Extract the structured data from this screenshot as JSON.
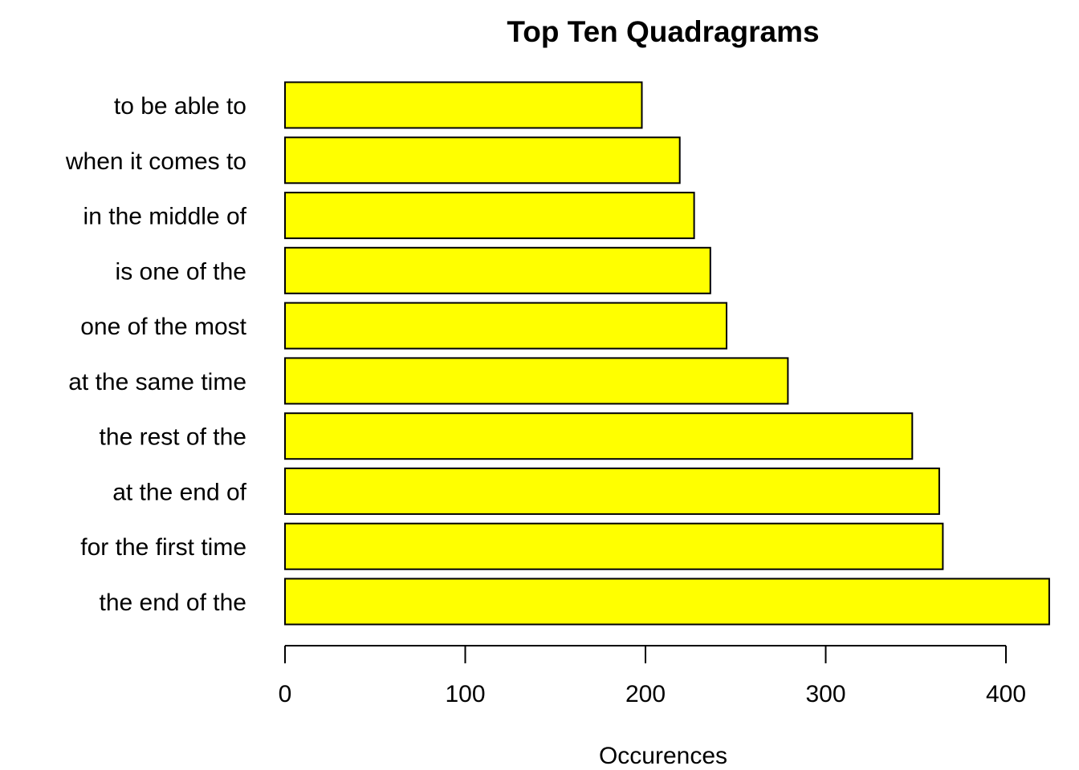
{
  "chart_data": {
    "type": "bar",
    "orientation": "horizontal",
    "title": "Top Ten Quadragrams",
    "xlabel": "Occurences",
    "ylabel": "",
    "categories": [
      "the end of the",
      "for the first time",
      "at the end of",
      "the rest of the",
      "at the same time",
      "one of the most",
      "is one of the",
      "in the middle of",
      "when it comes to",
      "to be able to"
    ],
    "values": [
      424,
      365,
      363,
      348,
      279,
      245,
      236,
      227,
      219,
      198
    ],
    "xlim": [
      0,
      424
    ],
    "xticks": [
      0,
      100,
      200,
      300,
      400
    ],
    "grid": false,
    "legend": "none",
    "bar_color": "#FFFF00",
    "bar_border_color": "#000000"
  }
}
